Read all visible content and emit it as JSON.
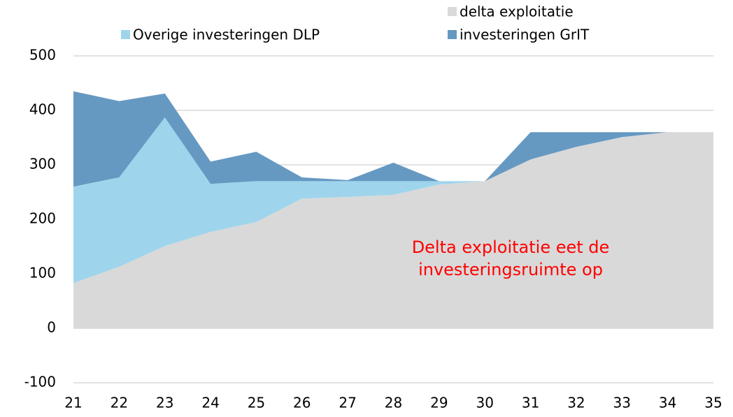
{
  "chart_data": {
    "type": "stacked-area",
    "categories": [
      "21",
      "22",
      "23",
      "24",
      "25",
      "26",
      "27",
      "28",
      "29",
      "30",
      "31",
      "32",
      "33",
      "34",
      "35"
    ],
    "series": [
      {
        "name": "delta exploitatie",
        "color": "#d9d9d9",
        "values": [
          83,
          113,
          151,
          177,
          195,
          238,
          241,
          245,
          264,
          270,
          310,
          333,
          351,
          360,
          360
        ]
      },
      {
        "name": "Overige investeringen DLP",
        "color": "#9fd5ec",
        "values": [
          177,
          164,
          236,
          88,
          75,
          32,
          29,
          25,
          6,
          0,
          0,
          0,
          0,
          0,
          0
        ]
      },
      {
        "name": "investeringen GrIT",
        "color": "#6699c2",
        "values": [
          175,
          140,
          44,
          41,
          54,
          7,
          2,
          34,
          0,
          0,
          50,
          27,
          9,
          0,
          0
        ]
      }
    ],
    "ylim": [
      -100,
      500
    ],
    "yticks": [
      -100,
      0,
      100,
      200,
      300,
      400,
      500
    ],
    "grid": true,
    "annotation": [
      "Delta exploitatie eet de",
      "investeringsruimte op"
    ],
    "annotation_color": "#ff0000"
  }
}
